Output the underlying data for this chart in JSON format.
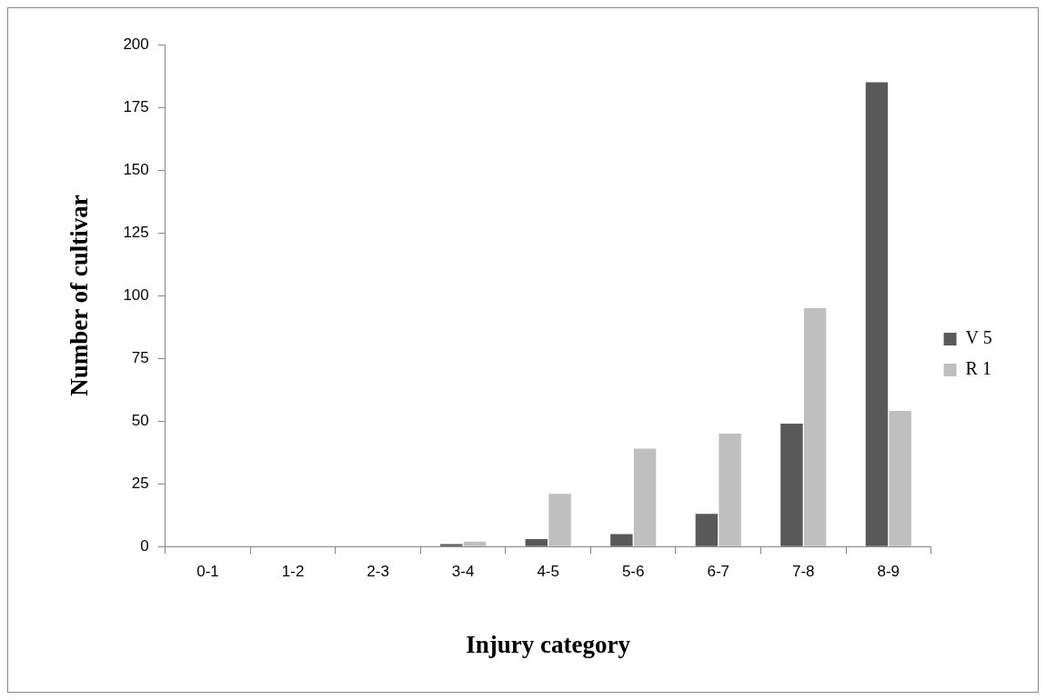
{
  "chart_data": {
    "type": "bar",
    "xlabel": "Injury category",
    "ylabel": "Number of cultivar",
    "categories": [
      "0-1",
      "1-2",
      "2-3",
      "3-4",
      "4-5",
      "5-6",
      "6-7",
      "7-8",
      "8-9"
    ],
    "series": [
      {
        "name": "V 5",
        "color": "#595959",
        "values": [
          0,
          0,
          0,
          1,
          3,
          5,
          13,
          49,
          185
        ]
      },
      {
        "name": "R 1",
        "color": "#bfbfbf",
        "values": [
          0,
          0,
          0,
          2,
          21,
          39,
          45,
          95,
          54
        ]
      }
    ],
    "ylim": [
      0,
      200
    ],
    "yticks": [
      0,
      25,
      50,
      75,
      100,
      125,
      150,
      175,
      200
    ],
    "grid": false,
    "legend": "right"
  }
}
